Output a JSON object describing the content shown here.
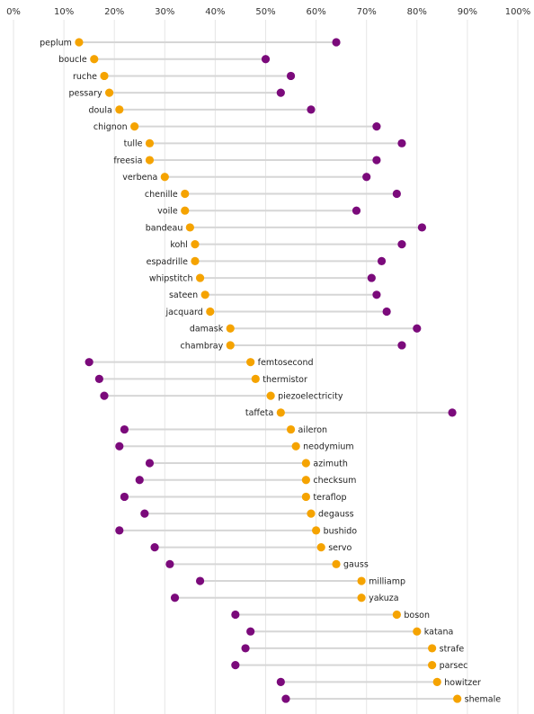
{
  "chart_data": {
    "type": "dumbbell",
    "x_axis": {
      "ticks": [
        "0%",
        "10%",
        "20%",
        "30%",
        "40%",
        "50%",
        "60%",
        "70%",
        "80%",
        "90%",
        "100%"
      ],
      "range": [
        0,
        100
      ],
      "position": "top",
      "grid": true
    },
    "colors": {
      "orange": "#f5a300",
      "purple": "#7b0a7b",
      "connector": "#d6d6d6"
    },
    "rows": [
      {
        "label": "peplum",
        "orange": 13,
        "purple": 64
      },
      {
        "label": "boucle",
        "orange": 16,
        "purple": 50
      },
      {
        "label": "ruche",
        "orange": 18,
        "purple": 55
      },
      {
        "label": "pessary",
        "orange": 19,
        "purple": 53
      },
      {
        "label": "doula",
        "orange": 21,
        "purple": 59
      },
      {
        "label": "chignon",
        "orange": 24,
        "purple": 72
      },
      {
        "label": "tulle",
        "orange": 27,
        "purple": 77
      },
      {
        "label": "freesia",
        "orange": 27,
        "purple": 72
      },
      {
        "label": "verbena",
        "orange": 30,
        "purple": 70
      },
      {
        "label": "chenille",
        "orange": 34,
        "purple": 76
      },
      {
        "label": "voile",
        "orange": 34,
        "purple": 68
      },
      {
        "label": "bandeau",
        "orange": 35,
        "purple": 81
      },
      {
        "label": "kohl",
        "orange": 36,
        "purple": 77
      },
      {
        "label": "espadrille",
        "orange": 36,
        "purple": 73
      },
      {
        "label": "whipstitch",
        "orange": 37,
        "purple": 71
      },
      {
        "label": "sateen",
        "orange": 38,
        "purple": 72
      },
      {
        "label": "jacquard",
        "orange": 39,
        "purple": 74
      },
      {
        "label": "damask",
        "orange": 43,
        "purple": 80
      },
      {
        "label": "chambray",
        "orange": 43,
        "purple": 77
      },
      {
        "label": "femtosecond",
        "orange": 47,
        "purple": 15
      },
      {
        "label": "thermistor",
        "orange": 48,
        "purple": 17
      },
      {
        "label": "piezoelectricity",
        "orange": 51,
        "purple": 18
      },
      {
        "label": "taffeta",
        "orange": 53,
        "purple": 87
      },
      {
        "label": "aileron",
        "orange": 55,
        "purple": 22
      },
      {
        "label": "neodymium",
        "orange": 56,
        "purple": 21
      },
      {
        "label": "azimuth",
        "orange": 58,
        "purple": 27
      },
      {
        "label": "checksum",
        "orange": 58,
        "purple": 25
      },
      {
        "label": "teraflop",
        "orange": 58,
        "purple": 22
      },
      {
        "label": "degauss",
        "orange": 59,
        "purple": 26
      },
      {
        "label": "bushido",
        "orange": 60,
        "purple": 21
      },
      {
        "label": "servo",
        "orange": 61,
        "purple": 28
      },
      {
        "label": "gauss",
        "orange": 64,
        "purple": 31
      },
      {
        "label": "milliamp",
        "orange": 69,
        "purple": 37
      },
      {
        "label": "yakuza",
        "orange": 69,
        "purple": 32
      },
      {
        "label": "boson",
        "orange": 76,
        "purple": 44
      },
      {
        "label": "katana",
        "orange": 80,
        "purple": 47
      },
      {
        "label": "strafe",
        "orange": 83,
        "purple": 46
      },
      {
        "label": "parsec",
        "orange": 83,
        "purple": 44
      },
      {
        "label": "howitzer",
        "orange": 84,
        "purple": 53
      },
      {
        "label": "shemale",
        "orange": 88,
        "purple": 54
      }
    ]
  }
}
